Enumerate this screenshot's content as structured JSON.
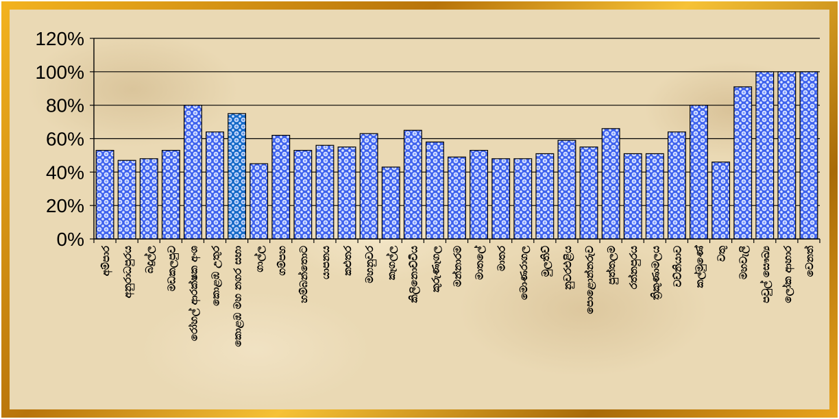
{
  "chart_data": {
    "type": "bar",
    "title": "",
    "xlabel": "",
    "ylabel": "",
    "ylim": [
      0,
      120
    ],
    "yticks": [
      "0%",
      "20%",
      "40%",
      "60%",
      "80%",
      "100%",
      "120%"
    ],
    "grid": true,
    "legend": "none",
    "categories": [
      "අම්පාර",
      "අනුරාධපුරය",
      "බදුල්ල",
      "මඩකලපුව",
      "රෝහල් ආරක්ෂක අංශ",
      "කොළඹ උතුර",
      "කොළඹ මහ නගර සභා",
      "ගාල්ල",
      "ගම්පහ",
      "හම්බන්තොට",
      "යාපනය",
      "කළුතර",
      "මහනුවර",
      "කෑගල්ල",
      "කිලිනොච්චිය",
      "කුරුණෑගල",
      "මන්නාරම",
      "මාතලේ",
      "මාතර",
      "මොණරාගල",
      "මුලතිව්",
      "නුවරඑළිය",
      "පොළොන්නරුව",
      "පුත්තලම",
      "රත්නපුරය",
      "ත්‍රිකුණාමලය",
      "වව්නියාව",
      "කල්මුණේ",
      "වතු",
      "මහවැලි",
      "පවුල් සෞඛ්‍ය",
      "ලෝක ආහාර",
      "වෙනත්"
    ],
    "values": [
      53,
      47,
      48,
      53,
      80,
      64,
      75,
      45,
      62,
      53,
      56,
      55,
      63,
      43,
      65,
      58,
      49,
      53,
      48,
      48,
      51,
      59,
      55,
      66,
      51,
      51,
      64,
      80,
      46,
      91,
      100,
      100,
      100
    ],
    "colors": {
      "bar_fill": "#3f63ee",
      "bar_dots": "#dfe8ff",
      "highlight_fill": "#1569c7",
      "bar_stroke": "#000000",
      "frame": "#d8941a",
      "gridline": "#000000"
    }
  }
}
